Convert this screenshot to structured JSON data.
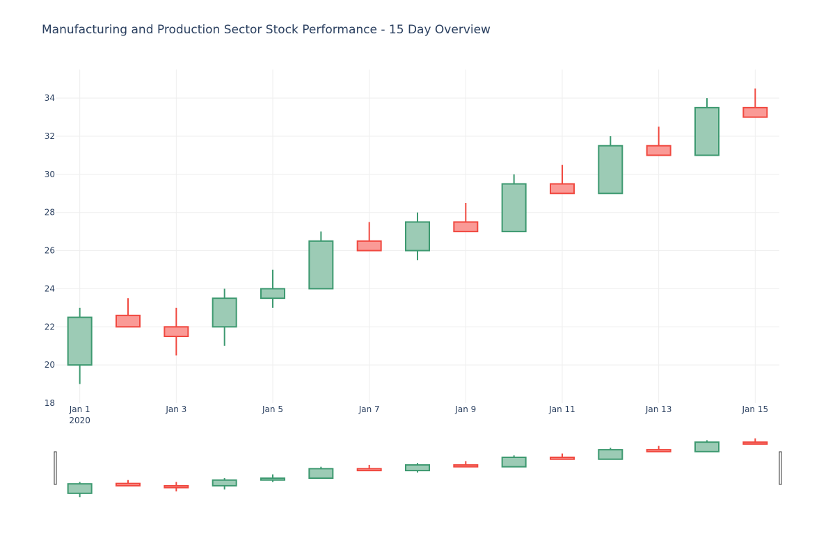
{
  "chart_data": {
    "type": "candlestick",
    "title": "Manufacturing and Production Sector Stock Performance - 15 Day Overview",
    "xlabel": "",
    "ylabel": "",
    "x": [
      "2020-01-01",
      "2020-01-02",
      "2020-01-03",
      "2020-01-04",
      "2020-01-05",
      "2020-01-06",
      "2020-01-07",
      "2020-01-08",
      "2020-01-09",
      "2020-01-10",
      "2020-01-11",
      "2020-01-12",
      "2020-01-13",
      "2020-01-14",
      "2020-01-15"
    ],
    "open": [
      20,
      22.6,
      22,
      22,
      23.5,
      24,
      26.5,
      26,
      27.5,
      27,
      29.5,
      29,
      31.5,
      31,
      33.5
    ],
    "high": [
      23,
      23.5,
      23,
      24,
      25,
      27,
      27.5,
      28,
      28.5,
      30,
      30.5,
      32,
      32.5,
      34,
      34.5
    ],
    "low": [
      19,
      22,
      20.5,
      21,
      23,
      24,
      26,
      25.5,
      27,
      27,
      29,
      29,
      31,
      31,
      33
    ],
    "close": [
      22.5,
      22,
      21.5,
      23.5,
      24,
      26.5,
      26,
      27.5,
      27,
      29.5,
      29,
      31.5,
      31,
      33.5,
      33
    ],
    "x_ticks": [
      {
        "index": 0,
        "label": "Jan 1",
        "sublabel": "2020"
      },
      {
        "index": 2,
        "label": "Jan 3",
        "sublabel": ""
      },
      {
        "index": 4,
        "label": "Jan 5",
        "sublabel": ""
      },
      {
        "index": 6,
        "label": "Jan 7",
        "sublabel": ""
      },
      {
        "index": 8,
        "label": "Jan 9",
        "sublabel": ""
      },
      {
        "index": 10,
        "label": "Jan 11",
        "sublabel": ""
      },
      {
        "index": 12,
        "label": "Jan 13",
        "sublabel": ""
      },
      {
        "index": 14,
        "label": "Jan 15",
        "sublabel": ""
      }
    ],
    "y_ticks": [
      18,
      20,
      22,
      24,
      26,
      28,
      30,
      32,
      34
    ],
    "ylim": [
      18,
      35.5
    ],
    "xlim": [
      -0.5,
      14.5
    ],
    "grid": true,
    "legend": "none",
    "rangeslider": true,
    "colors": {
      "increasing_line": "#3d9970",
      "increasing_fill": "#9ccbb5",
      "decreasing_line": "#f0483f",
      "decreasing_fill": "#fa9a96",
      "grid": "#eeeeee"
    }
  }
}
